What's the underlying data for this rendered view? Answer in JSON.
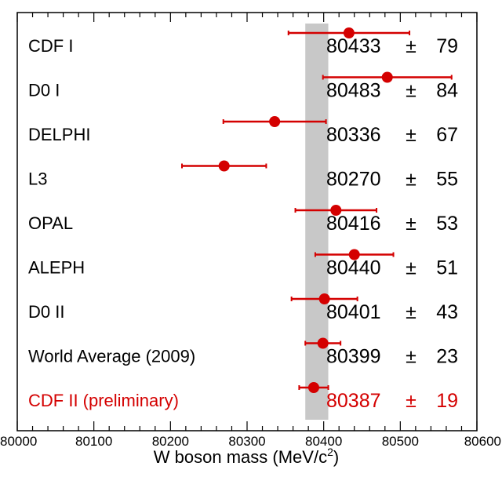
{
  "chart_data": {
    "type": "scatter",
    "title": "",
    "xlabel": "W boson mass (MeV/c",
    "xlabel_sup": "2",
    "xlabel_close": ")",
    "xlim": [
      80000,
      80600
    ],
    "xticks": [
      80000,
      80100,
      80200,
      80300,
      80400,
      80500,
      80600
    ],
    "xtick_labels": [
      "80000",
      "80100",
      "80200",
      "80300",
      "80400",
      "80500",
      "80600"
    ],
    "band": {
      "min": 80376,
      "max": 80406,
      "color": "#c8c8c8"
    },
    "pm_symbol": "±",
    "measurements": [
      {
        "label": "CDF I",
        "value": 80433,
        "error": 79,
        "value_text": "80433",
        "error_text": "79",
        "color": "#000000"
      },
      {
        "label": "D0 I",
        "value": 80483,
        "error": 84,
        "value_text": "80483",
        "error_text": "84",
        "color": "#000000"
      },
      {
        "label": "DELPHI",
        "value": 80336,
        "error": 67,
        "value_text": "80336",
        "error_text": "67",
        "color": "#000000"
      },
      {
        "label": "L3",
        "value": 80270,
        "error": 55,
        "value_text": "80270",
        "error_text": "55",
        "color": "#000000"
      },
      {
        "label": "OPAL",
        "value": 80416,
        "error": 53,
        "value_text": "80416",
        "error_text": "53",
        "color": "#000000"
      },
      {
        "label": "ALEPH",
        "value": 80440,
        "error": 51,
        "value_text": "80440",
        "error_text": "51",
        "color": "#000000"
      },
      {
        "label": "D0 II",
        "value": 80401,
        "error": 43,
        "value_text": "80401",
        "error_text": "43",
        "color": "#000000"
      },
      {
        "label": "World Average (2009)",
        "value": 80399,
        "error": 23,
        "value_text": "80399",
        "error_text": "23",
        "color": "#000000"
      },
      {
        "label": "CDF II (preliminary)",
        "value": 80387,
        "error": 19,
        "value_text": "80387",
        "error_text": "19",
        "color": "#d40000"
      }
    ],
    "marker_color": "#d40000",
    "grid": false
  }
}
